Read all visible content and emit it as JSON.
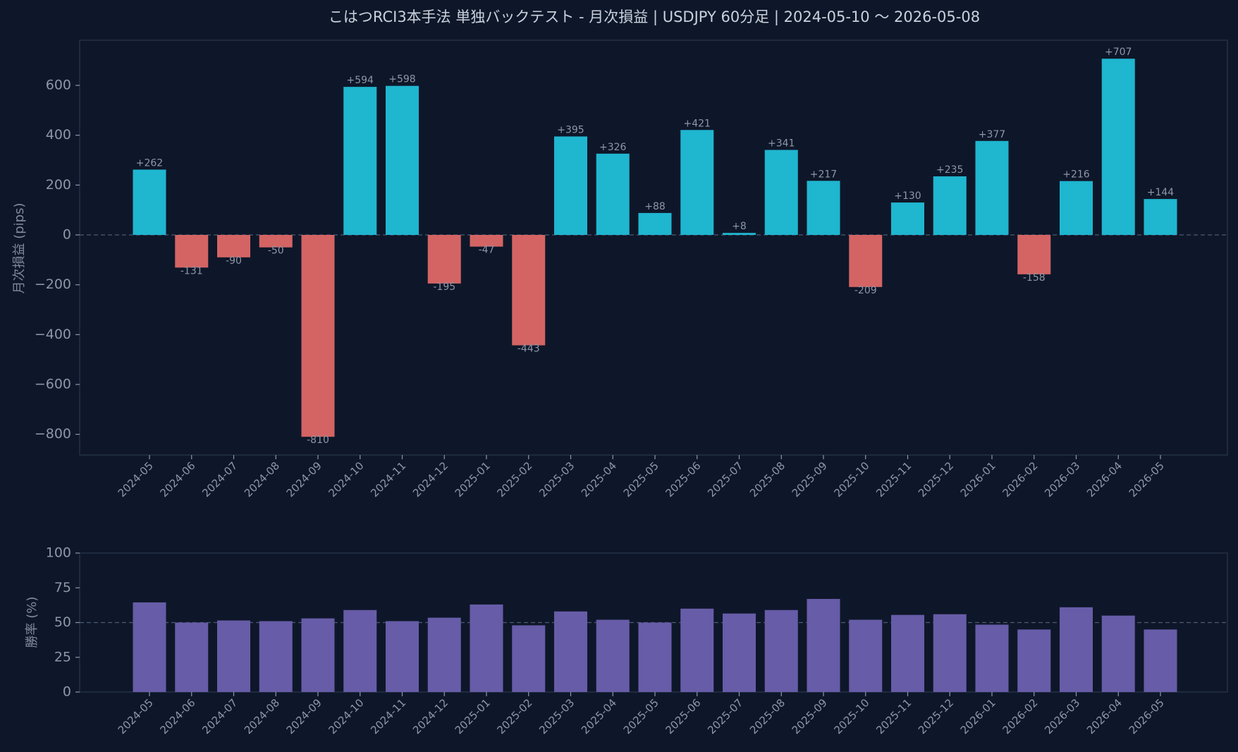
{
  "chart_data": [
    {
      "type": "bar",
      "title": "こはつRCI3本手法 単独バックテスト - 月次損益 | USDJPY 60分足 | 2024-05-10 〜 2026-05-08",
      "xlabel": "",
      "ylabel": "月次損益 (pips)",
      "ylim": [
        -880,
        780
      ],
      "yticks": [
        -800,
        -600,
        -400,
        -200,
        0,
        200,
        400,
        600
      ],
      "ytick_labels": [
        "−800",
        "−600",
        "−400",
        "−200",
        "0",
        "200",
        "400",
        "600"
      ],
      "reference_line": 0,
      "categories": [
        "2024-05",
        "2024-06",
        "2024-07",
        "2024-08",
        "2024-09",
        "2024-10",
        "2024-11",
        "2024-12",
        "2025-01",
        "2025-02",
        "2025-03",
        "2025-04",
        "2025-05",
        "2025-06",
        "2025-07",
        "2025-08",
        "2025-09",
        "2025-10",
        "2025-11",
        "2025-12",
        "2026-01",
        "2026-02",
        "2026-03",
        "2026-04",
        "2026-05"
      ],
      "values": [
        262,
        -131,
        -90,
        -50,
        -810,
        594,
        598,
        -195,
        -47,
        -443,
        395,
        326,
        88,
        421,
        8,
        341,
        217,
        -209,
        130,
        235,
        377,
        -158,
        216,
        707,
        144
      ],
      "value_labels": [
        "+262",
        "-131",
        "-90",
        "-50",
        "-810",
        "+594",
        "+598",
        "-195",
        "-47",
        "-443",
        "+395",
        "+326",
        "+88",
        "+421",
        "+8",
        "+341",
        "+217",
        "-209",
        "+130",
        "+235",
        "+377",
        "-158",
        "+216",
        "+707",
        "+144"
      ],
      "colors": {
        "positive": "#1fb6d0",
        "negative": "#d46464"
      }
    },
    {
      "type": "bar",
      "title": "",
      "xlabel": "",
      "ylabel": "勝率 (%)",
      "ylim": [
        0,
        100
      ],
      "yticks": [
        0,
        25,
        50,
        75,
        100
      ],
      "ytick_labels": [
        "0",
        "25",
        "50",
        "75",
        "100"
      ],
      "reference_line": 50,
      "categories": [
        "2024-05",
        "2024-06",
        "2024-07",
        "2024-08",
        "2024-09",
        "2024-10",
        "2024-11",
        "2024-12",
        "2025-01",
        "2025-02",
        "2025-03",
        "2025-04",
        "2025-05",
        "2025-06",
        "2025-07",
        "2025-08",
        "2025-09",
        "2025-10",
        "2025-11",
        "2025-12",
        "2026-01",
        "2026-02",
        "2026-03",
        "2026-04",
        "2026-05"
      ],
      "values": [
        64.5,
        50,
        51.5,
        51,
        53,
        59,
        51,
        53.5,
        63,
        48,
        58,
        52,
        50,
        60,
        56.5,
        59,
        67,
        52,
        55.5,
        56,
        48.5,
        45,
        61,
        55,
        45
      ],
      "colors": {
        "bar": "#675ca8"
      }
    }
  ]
}
